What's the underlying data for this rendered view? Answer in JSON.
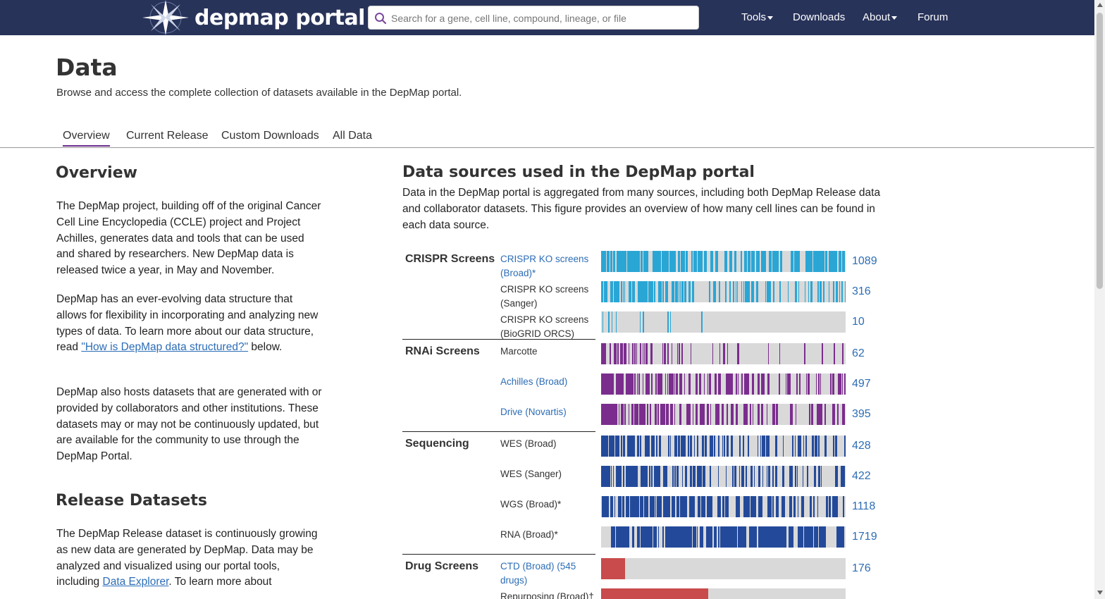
{
  "nav": {
    "logo_text": "depmap portal",
    "search_placeholder": "Search for a gene, cell line, compound, lineage, or file",
    "links": [
      "Tools",
      "Downloads",
      "About",
      "Forum"
    ]
  },
  "header": {
    "title": "Data",
    "subtitle": "Browse and access the complete collection of datasets available in the DepMap portal."
  },
  "tabs": [
    "Overview",
    "Current Release",
    "Custom Downloads",
    "All Data"
  ],
  "overview": {
    "heading": "Overview",
    "p1": "The DepMap project, building off of the original Cancer Cell Line Encyclopedia (CCLE) project and Project Achilles, generates data and tools that can be used and shared by researchers. New DepMap data is released twice a year, in May and November.",
    "p2_before": "DepMap has an ever-evolving data structure that allows for flexibility in incorporating and analyzing new types of data. To learn more about our data structure, read ",
    "p2_link": "\"How is DepMap data structured?\"",
    "p2_after": " below.",
    "p3": "DepMap also hosts datasets that are generated with or provided by collaborators and other institutions. These datasets may or may not be continuously updated, but are available for the community to use through the DepMap Portal."
  },
  "release": {
    "heading": "Release Datasets",
    "p1_before": "The DepMap Release dataset is continuously growing as new data are generated by DepMap. Data may be analyzed and visualized using our portal tools, including ",
    "p1_link": "Data Explorer",
    "p1_after": ". To learn more about"
  },
  "data_sources": {
    "heading": "Data sources used in the DepMap portal",
    "description": "Data in the DepMap portal is aggregated from many sources, including both DepMap Release data and collaborator datasets. This figure provides an overview of how many cell lines can be found in each data source."
  },
  "chart_data": {
    "type": "bar",
    "colors": {
      "crispr": "#2aa6d5",
      "rnai": "#7b2d8e",
      "sequencing": "#234a9a",
      "drug": "#c94b4b",
      "track": "#d9d9d9"
    },
    "groups": [
      {
        "name": "CRISPR Screens",
        "sources": [
          {
            "label": "CRISPR KO screens (Broad)*",
            "link": true,
            "count": 1089,
            "color": "crispr"
          },
          {
            "label": "CRISPR KO screens (Sanger)",
            "link": false,
            "count": 316,
            "color": "crispr"
          },
          {
            "label": "CRISPR KO screens (BioGRID ORCS)",
            "link": false,
            "count": 10,
            "color": "crispr"
          }
        ]
      },
      {
        "name": "RNAi Screens",
        "sources": [
          {
            "label": "Marcotte",
            "link": false,
            "count": 62,
            "color": "rnai"
          },
          {
            "label": "Achilles (Broad)",
            "link": true,
            "count": 497,
            "color": "rnai"
          },
          {
            "label": "Drive (Novartis)",
            "link": true,
            "count": 395,
            "color": "rnai"
          }
        ]
      },
      {
        "name": "Sequencing",
        "sources": [
          {
            "label": "WES (Broad)",
            "link": false,
            "count": 428,
            "color": "sequencing"
          },
          {
            "label": "WES (Sanger)",
            "link": false,
            "count": 422,
            "color": "sequencing"
          },
          {
            "label": "WGS (Broad)*",
            "link": false,
            "count": 1118,
            "color": "sequencing"
          },
          {
            "label": "RNA (Broad)*",
            "link": false,
            "count": 1719,
            "color": "sequencing"
          }
        ]
      },
      {
        "name": "Drug Screens",
        "sources": [
          {
            "label": "CTD (Broad) (545 drugs)",
            "link": true,
            "count": 176,
            "color": "drug"
          },
          {
            "label": "Repurposing (Broad)†",
            "link": false,
            "count": null,
            "color": "drug"
          }
        ]
      }
    ]
  }
}
